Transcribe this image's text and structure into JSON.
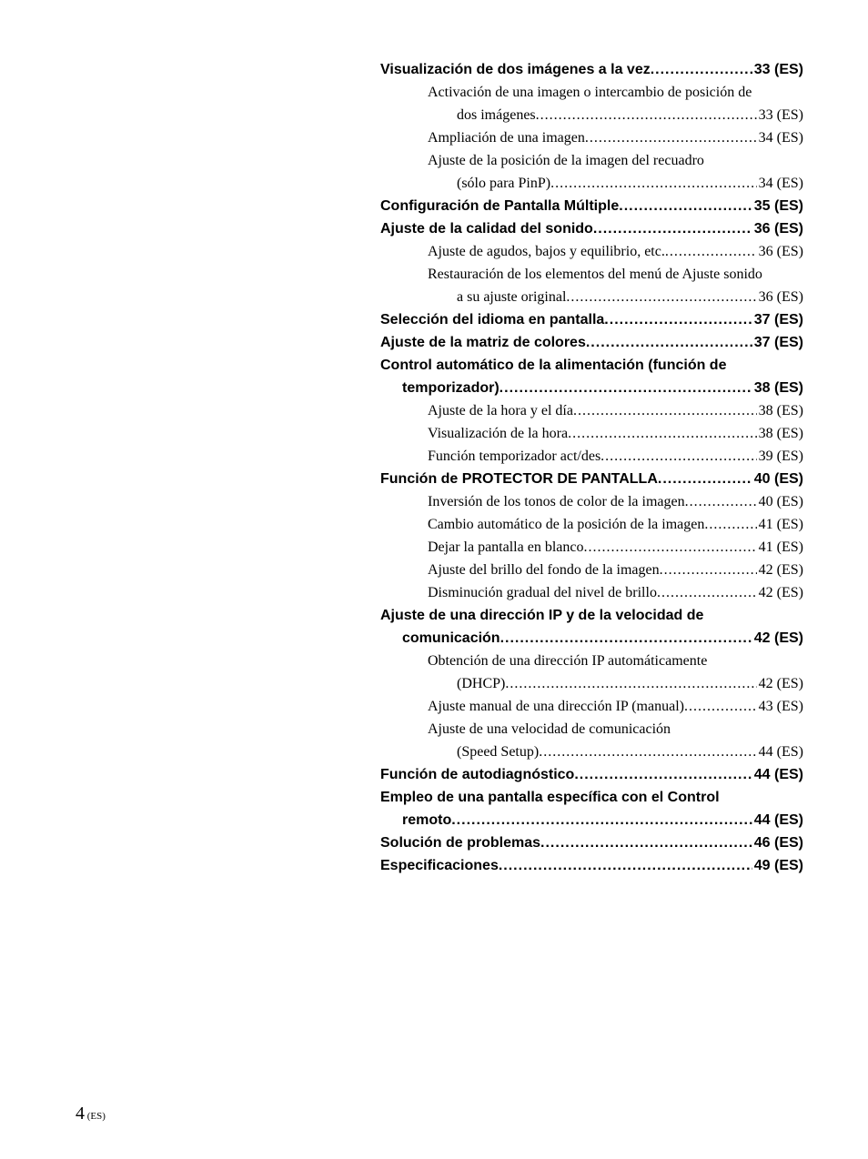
{
  "toc": [
    {
      "type": "main",
      "text": "Visualización de dos imágenes a la vez",
      "page": "33 (ES)"
    },
    {
      "type": "sub",
      "text": "Activación de una imagen o intercambio de posición de",
      "wrap": true
    },
    {
      "type": "cont",
      "text": "dos imágenes",
      "page": "33 (ES)"
    },
    {
      "type": "sub",
      "text": "Ampliación de una imagen",
      "page": "34 (ES)"
    },
    {
      "type": "sub",
      "text": "Ajuste de la posición de la imagen del recuadro",
      "wrap": true
    },
    {
      "type": "cont",
      "text": "(sólo para PinP)",
      "page": "34 (ES)"
    },
    {
      "type": "main",
      "text": "Configuración de Pantalla Múltiple",
      "page": "35 (ES)"
    },
    {
      "type": "main",
      "text": "Ajuste de la calidad del sonido",
      "page": "36 (ES)"
    },
    {
      "type": "sub",
      "text": "Ajuste de agudos, bajos y equilibrio, etc.",
      "page": "36 (ES)"
    },
    {
      "type": "sub",
      "text": "Restauración de los elementos del menú de Ajuste sonido",
      "wrap": true
    },
    {
      "type": "cont",
      "text": "a su ajuste original",
      "page": "36 (ES)"
    },
    {
      "type": "main",
      "text": "Selección del idioma en pantalla",
      "page": "37 (ES)"
    },
    {
      "type": "main",
      "text": "Ajuste de la matriz de colores",
      "page": "37 (ES)"
    },
    {
      "type": "main",
      "text": "Control automático de la alimentación (función de",
      "wrap": true
    },
    {
      "type": "maincont",
      "text": "temporizador)",
      "page": "38 (ES)"
    },
    {
      "type": "sub",
      "text": "Ajuste de la hora y el día",
      "page": "38 (ES)"
    },
    {
      "type": "sub",
      "text": "Visualización de la hora",
      "page": "38 (ES)"
    },
    {
      "type": "sub",
      "text": "Función temporizador act/des",
      "page": "39 (ES)"
    },
    {
      "type": "main",
      "text": "Función de PROTECTOR DE PANTALLA",
      "page": "40 (ES)"
    },
    {
      "type": "sub",
      "text": "Inversión de los tonos de color de la imagen",
      "page": "40 (ES)"
    },
    {
      "type": "sub",
      "text": "Cambio automático de la posición de la imagen",
      "page": "41 (ES)"
    },
    {
      "type": "sub",
      "text": "Dejar la pantalla en blanco",
      "page": "41 (ES)"
    },
    {
      "type": "sub",
      "text": "Ajuste del brillo del fondo de la imagen",
      "page": "42 (ES)"
    },
    {
      "type": "sub",
      "text": "Disminución gradual del nivel de brillo",
      "page": "42 (ES)"
    },
    {
      "type": "main",
      "text": "Ajuste de una dirección IP y de la velocidad de",
      "wrap": true
    },
    {
      "type": "maincont",
      "text": "comunicación",
      "page": "42 (ES)"
    },
    {
      "type": "sub",
      "text": "Obtención de una dirección IP automáticamente",
      "wrap": true
    },
    {
      "type": "cont",
      "text": "(DHCP)",
      "page": "42 (ES)"
    },
    {
      "type": "sub",
      "text": "Ajuste manual de una dirección IP (manual)",
      "page": "43 (ES)"
    },
    {
      "type": "sub",
      "text": "Ajuste de una velocidad de comunicación",
      "wrap": true
    },
    {
      "type": "cont",
      "text": "(Speed Setup)",
      "page": "44 (ES)"
    },
    {
      "type": "main",
      "text": "Función de autodiagnóstico",
      "page": "44 (ES)"
    },
    {
      "type": "main",
      "text": "Empleo de una pantalla específica con el Control",
      "wrap": true
    },
    {
      "type": "maincont",
      "text": "remoto",
      "page": "44 (ES)"
    },
    {
      "type": "main",
      "text": "Solución de problemas",
      "page": "46 (ES)"
    },
    {
      "type": "main",
      "text": "Especificaciones",
      "page": "49 (ES)"
    }
  ],
  "pageNumber": {
    "big": "4",
    "small": " (ES)"
  }
}
